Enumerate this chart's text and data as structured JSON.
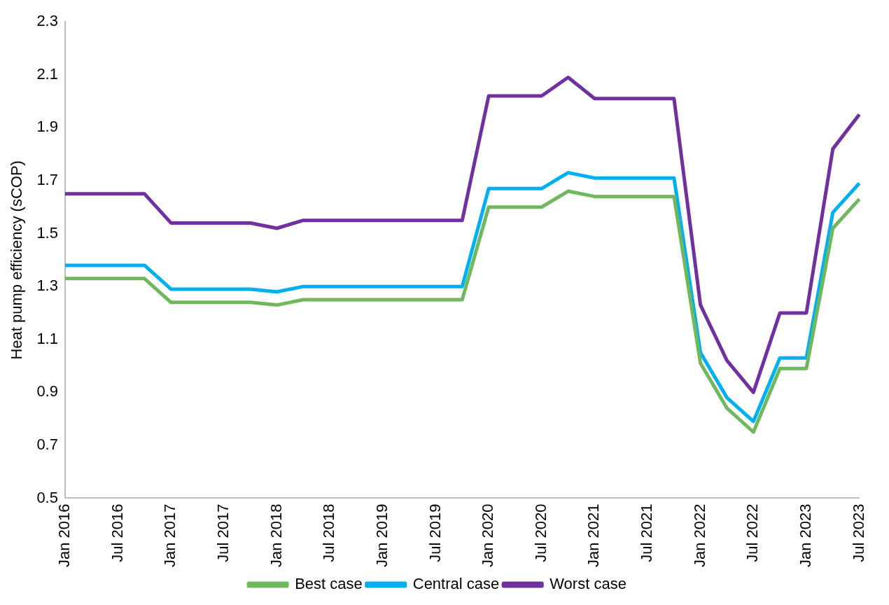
{
  "chart_data": {
    "type": "line",
    "ylabel": "Heat pump efficiency (sCOP)",
    "categories": [
      "Jan 2016",
      null,
      "Jul 2016",
      null,
      "Jan 2017",
      null,
      "Jul 2017",
      null,
      "Jan 2018",
      null,
      "Jul 2018",
      null,
      "Jan 2019",
      null,
      "Jul 2019",
      null,
      "Jan 2020",
      null,
      "Jul 2020",
      null,
      "Jan 2021",
      null,
      "Jul 2021",
      null,
      "Jan 2022",
      null,
      "Jul 2022",
      null,
      "Jan 2023",
      null,
      "Jul 2023"
    ],
    "series": [
      {
        "name": "Best case",
        "color": "#70b85e",
        "values": [
          1.33,
          1.33,
          1.33,
          1.33,
          1.24,
          1.24,
          1.24,
          1.24,
          1.23,
          1.25,
          1.25,
          1.25,
          1.25,
          1.25,
          1.25,
          1.25,
          1.6,
          1.6,
          1.6,
          1.66,
          1.64,
          1.64,
          1.64,
          1.64,
          1.01,
          0.84,
          0.75,
          0.99,
          0.99,
          1.52,
          1.63
        ]
      },
      {
        "name": "Central case",
        "color": "#00b0f0",
        "values": [
          1.38,
          1.38,
          1.38,
          1.38,
          1.29,
          1.29,
          1.29,
          1.29,
          1.28,
          1.3,
          1.3,
          1.3,
          1.3,
          1.3,
          1.3,
          1.3,
          1.67,
          1.67,
          1.67,
          1.73,
          1.71,
          1.71,
          1.71,
          1.71,
          1.05,
          0.88,
          0.79,
          1.03,
          1.03,
          1.58,
          1.69
        ]
      },
      {
        "name": "Worst case",
        "color": "#7030a0",
        "values": [
          1.65,
          1.65,
          1.65,
          1.65,
          1.54,
          1.54,
          1.54,
          1.54,
          1.52,
          1.55,
          1.55,
          1.55,
          1.55,
          1.55,
          1.55,
          1.55,
          2.02,
          2.02,
          2.02,
          2.09,
          2.01,
          2.01,
          2.01,
          2.01,
          1.23,
          1.02,
          0.9,
          1.2,
          1.2,
          1.82,
          1.95
        ]
      }
    ],
    "ylim": [
      0.5,
      2.3
    ],
    "yticks": [
      0.5,
      0.7,
      0.9,
      1.1,
      1.3,
      1.5,
      1.7,
      1.9,
      2.1,
      2.3
    ],
    "grid": false,
    "legend": "bottom",
    "marker": "none",
    "line_style": "solid"
  }
}
